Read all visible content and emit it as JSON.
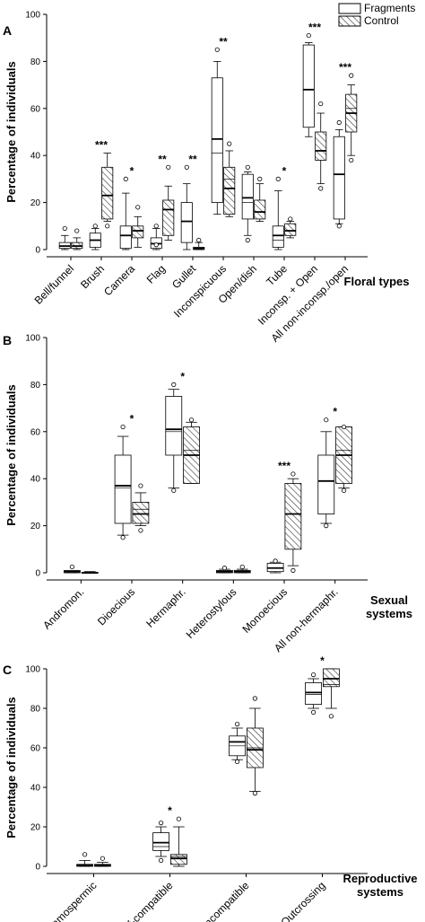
{
  "legend": {
    "fragments": "Fragments",
    "control": "Control"
  },
  "chart_data": [
    {
      "panel": "A",
      "type": "boxplot",
      "ylabel": "Percentage of individuals",
      "xlabel": "Floral types",
      "ylim": [
        0,
        100
      ],
      "yticks": [
        0,
        20,
        40,
        60,
        80,
        100
      ],
      "legend_position": "top-right",
      "categories": [
        {
          "label": "Bell/funnel",
          "sig": "",
          "fragments": {
            "min": 0,
            "q1": 0.5,
            "median": 1.5,
            "q3": 3,
            "max": 6,
            "outliers": [
              9
            ]
          },
          "control": {
            "min": 0,
            "q1": 0.5,
            "median": 1.5,
            "q3": 3,
            "max": 5,
            "outliers": [
              8
            ]
          }
        },
        {
          "label": "Brush",
          "sig": "***",
          "fragments": {
            "min": 0,
            "q1": 1,
            "median": 4,
            "q3": 7,
            "max": 9,
            "outliers": [
              10
            ]
          },
          "control": {
            "min": 12,
            "q1": 13,
            "median": 23,
            "q3": 35,
            "max": 41,
            "outliers": [
              10
            ]
          }
        },
        {
          "label": "Camera",
          "sig": "*",
          "fragments": {
            "min": 0,
            "q1": 0.5,
            "median": 6,
            "q3": 10,
            "max": 24,
            "outliers": [
              30
            ]
          },
          "control": {
            "min": 1,
            "q1": 5,
            "median": 8,
            "q3": 10,
            "max": 14,
            "outliers": [
              18
            ]
          }
        },
        {
          "label": "Flag",
          "sig": "**",
          "fragments": {
            "min": 0,
            "q1": 0.5,
            "median": 2.5,
            "q3": 5,
            "max": 9,
            "outliers": [
              10
            ]
          },
          "control": {
            "min": 4,
            "q1": 6,
            "median": 17,
            "q3": 21,
            "max": 27,
            "outliers": [
              35
            ]
          },
          "extra_outliers": [
            2
          ]
        },
        {
          "label": "Gullet",
          "sig": "**",
          "fragments": {
            "min": 0,
            "q1": 3,
            "median": 12,
            "q3": 20,
            "max": 28,
            "outliers": [
              35
            ]
          },
          "control": {
            "min": 0,
            "q1": 0,
            "median": 0.5,
            "q3": 1,
            "max": 3,
            "outliers": [
              4
            ]
          }
        },
        {
          "label": "Inconspicuous",
          "sig": "**",
          "fragments": {
            "min": 15,
            "q1": 20,
            "median": 47,
            "q3": 73,
            "max": 80,
            "outliers": [
              85
            ],
            "mean": 41
          },
          "control": {
            "min": 14,
            "q1": 15,
            "median": 26,
            "q3": 35,
            "max": 42,
            "outliers": [
              45
            ],
            "mean": 30
          }
        },
        {
          "label": "Open/dish",
          "sig": "",
          "fragments": {
            "min": 6,
            "q1": 13,
            "median": 22,
            "q3": 32,
            "max": 33,
            "outliers": [
              4,
              35
            ],
            "mean": 20
          },
          "control": {
            "min": 12,
            "q1": 13,
            "median": 16,
            "q3": 21,
            "max": 28,
            "outliers": [
              30
            ]
          }
        },
        {
          "label": "Tube",
          "sig": "*",
          "fragments": {
            "min": 0,
            "q1": 1,
            "median": 6,
            "q3": 10,
            "max": 25,
            "outliers": [
              30
            ],
            "mean": 4
          },
          "control": {
            "min": 5,
            "q1": 6,
            "median": 8,
            "q3": 11,
            "max": 12,
            "outliers": [
              13
            ]
          }
        },
        {
          "label": "Inconsp. + Open",
          "sig": "***",
          "fragments": {
            "min": 48,
            "q1": 52,
            "median": 68,
            "q3": 87,
            "max": 88,
            "outliers": [
              91
            ],
            "mean": 68
          },
          "control": {
            "min": 28,
            "q1": 38,
            "median": 42,
            "q3": 50,
            "max": 58,
            "outliers": [
              26,
              62
            ]
          }
        },
        {
          "label": "All non-inconsp./open",
          "sig": "***",
          "fragments": {
            "min": 11,
            "q1": 13,
            "median": 32,
            "q3": 48,
            "max": 51,
            "outliers": [
              10,
              54
            ],
            "mean": 32
          },
          "control": {
            "min": 40,
            "q1": 50,
            "median": 58,
            "q3": 66,
            "max": 70,
            "outliers": [
              38,
              74
            ],
            "mean": 60
          }
        }
      ]
    },
    {
      "panel": "B",
      "type": "boxplot",
      "ylabel": "Percentage of individuals",
      "xlabel": "Sexual systems",
      "ylim": [
        0,
        100
      ],
      "yticks": [
        0,
        20,
        40,
        60,
        80,
        100
      ],
      "categories": [
        {
          "label": "Andromon.",
          "sig": "",
          "fragments": {
            "min": 0,
            "q1": 0,
            "median": 0.5,
            "q3": 1,
            "max": 1,
            "outliers": [
              2.5
            ]
          },
          "control": {
            "min": 0,
            "q1": 0,
            "median": 0,
            "q3": 0.2,
            "max": 0.5,
            "outliers": []
          }
        },
        {
          "label": "Dioecious",
          "sig": "*",
          "fragments": {
            "min": 16,
            "q1": 21,
            "median": 37,
            "q3": 50,
            "max": 58,
            "outliers": [
              15,
              62
            ],
            "mean": 36
          },
          "control": {
            "min": 20,
            "q1": 21,
            "median": 25,
            "q3": 30,
            "max": 34,
            "outliers": [
              18,
              37
            ],
            "mean": 27
          }
        },
        {
          "label": "Hermaphr.",
          "sig": "*",
          "fragments": {
            "min": 36,
            "q1": 50,
            "median": 61,
            "q3": 75,
            "max": 78,
            "outliers": [
              35,
              80
            ],
            "mean": 60
          },
          "control": {
            "min": 38,
            "q1": 38,
            "median": 50,
            "q3": 62,
            "max": 64,
            "outliers": [
              65
            ],
            "mean": 52
          }
        },
        {
          "label": "Heterostylous",
          "sig": "",
          "fragments": {
            "min": 0,
            "q1": 0,
            "median": 0.5,
            "q3": 1,
            "max": 1.5,
            "outliers": [
              2
            ]
          },
          "control": {
            "min": 0,
            "q1": 0,
            "median": 0.5,
            "q3": 1,
            "max": 1.5,
            "outliers": [
              2.5
            ]
          }
        },
        {
          "label": "Monoecious",
          "sig": "***",
          "fragments": {
            "min": 0,
            "q1": 0.5,
            "median": 2,
            "q3": 4,
            "max": 4.5,
            "outliers": [
              5
            ]
          },
          "control": {
            "min": 3,
            "q1": 10,
            "median": 25,
            "q3": 38,
            "max": 40,
            "outliers": [
              1,
              42
            ]
          }
        },
        {
          "label": "All non-hermaphr.",
          "sig": "*",
          "fragments": {
            "min": 21,
            "q1": 25,
            "median": 39,
            "q3": 50,
            "max": 60,
            "outliers": [
              20,
              65
            ]
          },
          "control": {
            "min": 36,
            "q1": 38,
            "median": 50,
            "q3": 62,
            "max": 62,
            "outliers": [
              35,
              62
            ],
            "mean": 52
          }
        }
      ]
    },
    {
      "panel": "C",
      "type": "boxplot",
      "ylabel": "Percentage of individuals",
      "xlabel": "Reproductive systems",
      "ylim": [
        0,
        100
      ],
      "yticks": [
        0,
        20,
        40,
        60,
        80,
        100
      ],
      "categories": [
        {
          "label": "Agamospermic",
          "sig": "",
          "fragments": {
            "min": 0,
            "q1": 0,
            "median": 0.5,
            "q3": 1,
            "max": 3,
            "outliers": [
              6
            ]
          },
          "control": {
            "min": 0,
            "q1": 0,
            "median": 0.5,
            "q3": 1,
            "max": 2,
            "outliers": [
              4
            ]
          }
        },
        {
          "label": "Self-compatible",
          "sig": "*",
          "fragments": {
            "min": 5,
            "q1": 8,
            "median": 12,
            "q3": 17,
            "max": 20,
            "outliers": [
              3,
              22
            ],
            "mean": 10
          },
          "control": {
            "min": 0,
            "q1": 1,
            "median": 4,
            "q3": 6,
            "max": 20,
            "outliers": [
              24
            ],
            "mean": 5
          }
        },
        {
          "label": "Self-incompatible",
          "sig": "",
          "fragments": {
            "min": 54,
            "q1": 56,
            "median": 63,
            "q3": 66,
            "max": 70,
            "outliers": [
              53,
              72
            ],
            "mean": 61
          },
          "control": {
            "min": 38,
            "q1": 50,
            "median": 59,
            "q3": 70,
            "max": 80,
            "outliers": [
              37,
              85
            ],
            "mean": 60
          }
        },
        {
          "label": "Outcrossing",
          "sig": "*",
          "fragments": {
            "min": 80,
            "q1": 82,
            "median": 88,
            "q3": 93,
            "max": 95,
            "outliers": [
              78,
              97
            ],
            "mean": 87
          },
          "control": {
            "min": 80,
            "q1": 91,
            "median": 95,
            "q3": 100,
            "max": 100,
            "outliers": [
              76
            ],
            "mean": 92
          }
        }
      ]
    }
  ]
}
